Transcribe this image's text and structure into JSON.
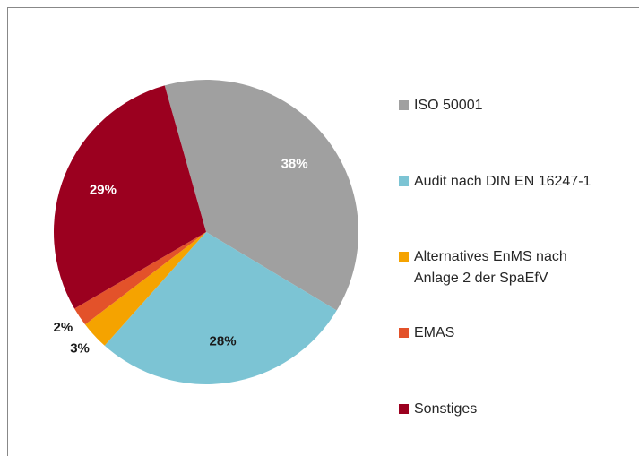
{
  "chart_data": {
    "type": "pie",
    "categories": [
      "ISO 50001",
      "Audit nach DIN EN 16247-1",
      "Alternatives EnMS nach Anlage 2 der SpaEfV",
      "EMAS",
      "Sonstiges"
    ],
    "values": [
      38,
      28,
      3,
      2,
      29
    ],
    "value_labels": [
      "38%",
      "28%",
      "3%",
      "2%",
      "29%"
    ],
    "colors": [
      "#a0a0a0",
      "#7cc4d4",
      "#f5a300",
      "#e3522a",
      "#9b001f"
    ],
    "label_colors": [
      "#ffffff",
      "#1a1a1a",
      "#1a1a1a",
      "#1a1a1a",
      "#ffffff"
    ],
    "legend": "right"
  }
}
